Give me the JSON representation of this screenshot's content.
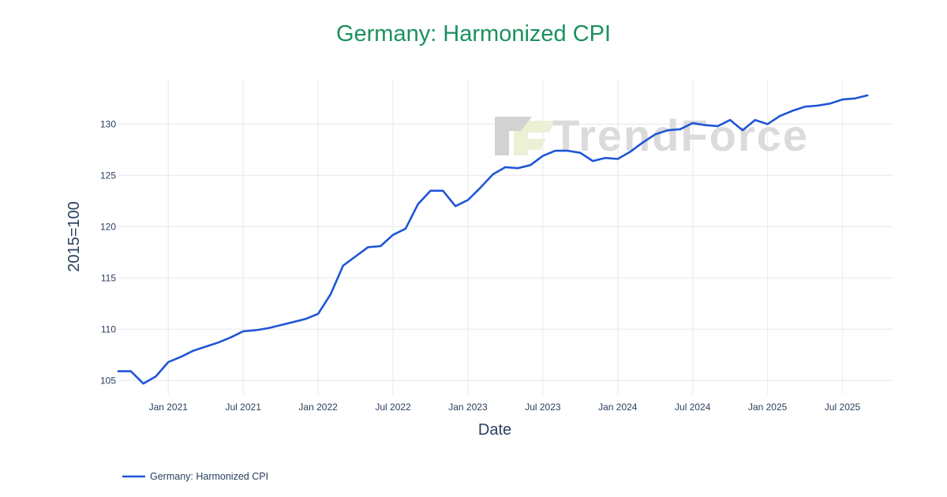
{
  "title": "Germany: Harmonized CPI",
  "watermark": {
    "text": "TrendForce"
  },
  "legend": {
    "label": "Germany: Harmonized CPI"
  },
  "colors": {
    "title": "#1a915f",
    "axis_text": "#2a3f5f",
    "grid": "#ebeef3",
    "line": "#1e56d6",
    "watermark_text": "#dbdbdb",
    "watermark_logo_gray": "#d2d2d2",
    "watermark_logo_green": "#ecf1d6",
    "background": "#ffffff"
  },
  "chart_data": {
    "type": "line",
    "title": "Germany: Harmonized CPI",
    "xlabel": "Date",
    "ylabel": "2015=100",
    "legend_position": "bottom-left",
    "grid": true,
    "ylim": [
      103.6,
      134.4
    ],
    "y_ticks": [
      105,
      110,
      115,
      120,
      125,
      130
    ],
    "x_tick_idx": [
      4,
      10,
      16,
      22,
      28,
      34,
      40,
      46,
      52,
      58
    ],
    "x_tick_labels": [
      "Jan 2021",
      "Jul 2021",
      "Jan 2022",
      "Jul 2022",
      "Jan 2023",
      "Jul 2023",
      "Jan 2024",
      "Jul 2024",
      "Jan 2025",
      "Jul 2025"
    ],
    "series": [
      {
        "name": "Germany: Harmonized CPI",
        "color": "#1e56d6",
        "x": [
          "2020-09",
          "2020-10",
          "2020-11",
          "2020-12",
          "2021-01",
          "2021-02",
          "2021-03",
          "2021-04",
          "2021-05",
          "2021-06",
          "2021-07",
          "2021-08",
          "2021-09",
          "2021-10",
          "2021-11",
          "2021-12",
          "2022-01",
          "2022-02",
          "2022-03",
          "2022-04",
          "2022-05",
          "2022-06",
          "2022-07",
          "2022-08",
          "2022-09",
          "2022-10",
          "2022-11",
          "2022-12",
          "2023-01",
          "2023-02",
          "2023-03",
          "2023-04",
          "2023-05",
          "2023-06",
          "2023-07",
          "2023-08",
          "2023-09",
          "2023-10",
          "2023-11",
          "2023-12",
          "2024-01",
          "2024-02",
          "2024-03",
          "2024-04",
          "2024-05",
          "2024-06",
          "2024-07",
          "2024-08",
          "2024-09",
          "2024-10",
          "2024-11",
          "2024-12",
          "2025-01",
          "2025-02",
          "2025-03",
          "2025-04",
          "2025-05",
          "2025-06",
          "2025-07",
          "2025-08",
          "2025-09"
        ],
        "values": [
          105.9,
          105.9,
          104.7,
          105.4,
          106.8,
          107.3,
          107.9,
          108.3,
          108.7,
          109.2,
          109.8,
          109.9,
          110.1,
          110.4,
          110.7,
          111.0,
          111.5,
          113.4,
          116.2,
          117.1,
          118.0,
          118.1,
          119.2,
          119.8,
          122.2,
          123.5,
          123.5,
          122.0,
          122.6,
          123.8,
          125.1,
          125.8,
          125.7,
          126.0,
          126.9,
          127.4,
          127.4,
          127.2,
          126.4,
          126.7,
          126.6,
          127.3,
          128.2,
          129.0,
          129.4,
          129.5,
          130.1,
          129.9,
          129.8,
          130.4,
          129.4,
          130.4,
          130.0,
          130.8,
          131.3,
          131.7,
          131.8,
          132.0,
          132.4,
          132.5,
          132.8
        ]
      }
    ]
  }
}
